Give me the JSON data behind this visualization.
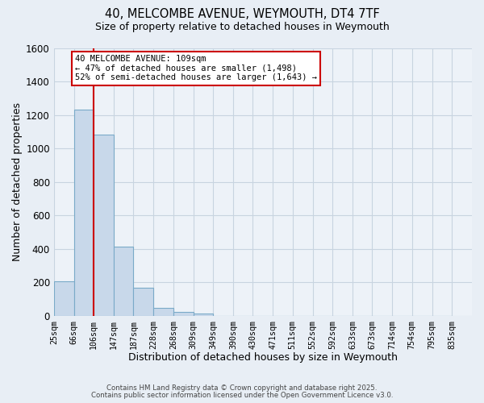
{
  "title": "40, MELCOMBE AVENUE, WEYMOUTH, DT4 7TF",
  "subtitle": "Size of property relative to detached houses in Weymouth",
  "xlabel": "Distribution of detached houses by size in Weymouth",
  "ylabel": "Number of detached properties",
  "bin_labels": [
    "25sqm",
    "66sqm",
    "106sqm",
    "147sqm",
    "187sqm",
    "228sqm",
    "268sqm",
    "309sqm",
    "349sqm",
    "390sqm",
    "430sqm",
    "471sqm",
    "511sqm",
    "552sqm",
    "592sqm",
    "633sqm",
    "673sqm",
    "714sqm",
    "754sqm",
    "795sqm",
    "835sqm"
  ],
  "bar_values": [
    205,
    1235,
    1085,
    415,
    170,
    50,
    25,
    15,
    0,
    0,
    0,
    0,
    0,
    0,
    0,
    0,
    0,
    0,
    0,
    0
  ],
  "bar_color": "#c8d8ea",
  "bar_edge_color": "#7aaac8",
  "vline_color": "#cc0000",
  "annotation_line1": "40 MELCOMBE AVENUE: 109sqm",
  "annotation_line2": "← 47% of detached houses are smaller (1,498)",
  "annotation_line3": "52% of semi-detached houses are larger (1,643) →",
  "annotation_box_facecolor": "#ffffff",
  "annotation_box_edgecolor": "#cc0000",
  "ylim": [
    0,
    1600
  ],
  "yticks": [
    0,
    200,
    400,
    600,
    800,
    1000,
    1200,
    1400,
    1600
  ],
  "bg_color": "#e8eef5",
  "plot_bg_color": "#edf2f8",
  "grid_color": "#c8d4e0",
  "footnote1": "Contains HM Land Registry data © Crown copyright and database right 2025.",
  "footnote2": "Contains public sector information licensed under the Open Government Licence v3.0.",
  "bin_edges": [
    25,
    66,
    106,
    147,
    187,
    228,
    268,
    309,
    349,
    390,
    430,
    471,
    511,
    552,
    592,
    633,
    673,
    714,
    754,
    795,
    835
  ],
  "vline_x": 106
}
